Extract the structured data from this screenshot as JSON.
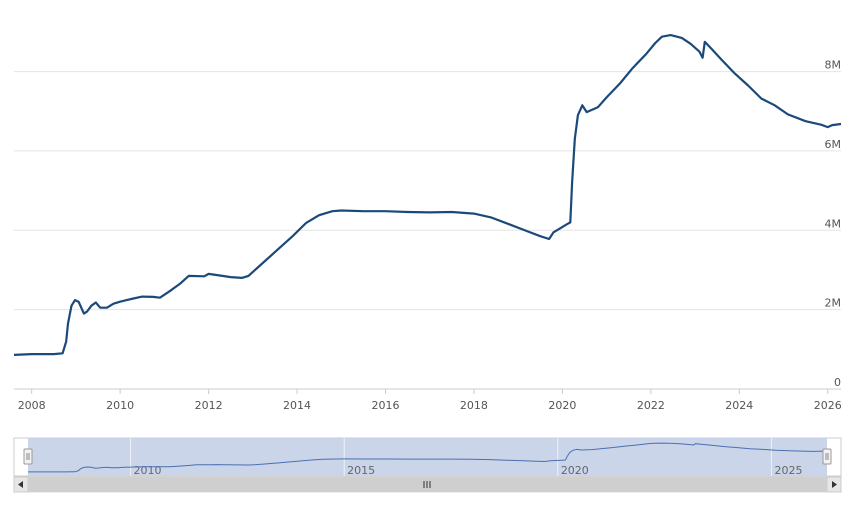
{
  "chart_data": {
    "type": "line",
    "title": "",
    "xlabel": "",
    "ylabel": "",
    "x_ticks": [
      "2008",
      "2010",
      "2012",
      "2014",
      "2016",
      "2018",
      "2020",
      "2022",
      "2024",
      "2026"
    ],
    "y_ticks": [
      "0",
      "2M",
      "4M",
      "6M",
      "8M"
    ],
    "ylim": [
      0,
      9300000
    ],
    "xlim": [
      2007.6,
      2026.3
    ],
    "grid": "horizontal",
    "legend": "none",
    "line_color": "#1b4a7a",
    "series": [
      {
        "points": [
          [
            2007.6,
            0.86
          ],
          [
            2008.0,
            0.88
          ],
          [
            2008.5,
            0.88
          ],
          [
            2008.7,
            0.9
          ],
          [
            2008.78,
            1.2
          ],
          [
            2008.82,
            1.65
          ],
          [
            2008.9,
            2.1
          ],
          [
            2008.98,
            2.24
          ],
          [
            2009.06,
            2.2
          ],
          [
            2009.18,
            1.9
          ],
          [
            2009.25,
            1.95
          ],
          [
            2009.35,
            2.1
          ],
          [
            2009.45,
            2.18
          ],
          [
            2009.55,
            2.05
          ],
          [
            2009.7,
            2.05
          ],
          [
            2009.85,
            2.15
          ],
          [
            2010.0,
            2.2
          ],
          [
            2010.3,
            2.28
          ],
          [
            2010.5,
            2.33
          ],
          [
            2010.75,
            2.32
          ],
          [
            2010.9,
            2.3
          ],
          [
            2011.1,
            2.45
          ],
          [
            2011.35,
            2.65
          ],
          [
            2011.55,
            2.85
          ],
          [
            2011.9,
            2.84
          ],
          [
            2012.0,
            2.9
          ],
          [
            2012.2,
            2.87
          ],
          [
            2012.5,
            2.82
          ],
          [
            2012.75,
            2.8
          ],
          [
            2012.9,
            2.85
          ],
          [
            2013.1,
            3.05
          ],
          [
            2013.5,
            3.45
          ],
          [
            2013.9,
            3.85
          ],
          [
            2014.2,
            4.18
          ],
          [
            2014.5,
            4.38
          ],
          [
            2014.8,
            4.48
          ],
          [
            2015.0,
            4.5
          ],
          [
            2015.5,
            4.48
          ],
          [
            2016.0,
            4.48
          ],
          [
            2016.5,
            4.46
          ],
          [
            2017.0,
            4.45
          ],
          [
            2017.5,
            4.46
          ],
          [
            2018.0,
            4.42
          ],
          [
            2018.4,
            4.32
          ],
          [
            2018.8,
            4.15
          ],
          [
            2019.2,
            3.98
          ],
          [
            2019.5,
            3.85
          ],
          [
            2019.7,
            3.78
          ],
          [
            2019.8,
            3.95
          ],
          [
            2019.95,
            4.05
          ],
          [
            2020.1,
            4.15
          ],
          [
            2020.18,
            4.2
          ],
          [
            2020.22,
            5.2
          ],
          [
            2020.28,
            6.3
          ],
          [
            2020.35,
            6.9
          ],
          [
            2020.45,
            7.15
          ],
          [
            2020.55,
            6.98
          ],
          [
            2020.8,
            7.1
          ],
          [
            2021.0,
            7.35
          ],
          [
            2021.3,
            7.7
          ],
          [
            2021.6,
            8.1
          ],
          [
            2021.9,
            8.45
          ],
          [
            2022.1,
            8.72
          ],
          [
            2022.25,
            8.88
          ],
          [
            2022.45,
            8.92
          ],
          [
            2022.7,
            8.85
          ],
          [
            2022.9,
            8.7
          ],
          [
            2023.1,
            8.5
          ],
          [
            2023.17,
            8.35
          ],
          [
            2023.22,
            8.75
          ],
          [
            2023.35,
            8.6
          ],
          [
            2023.6,
            8.3
          ],
          [
            2023.9,
            7.95
          ],
          [
            2024.2,
            7.65
          ],
          [
            2024.5,
            7.32
          ],
          [
            2024.8,
            7.15
          ],
          [
            2025.1,
            6.92
          ],
          [
            2025.5,
            6.75
          ],
          [
            2025.85,
            6.66
          ],
          [
            2026.0,
            6.6
          ],
          [
            2026.1,
            6.65
          ],
          [
            2026.3,
            6.68
          ]
        ],
        "point_units": "x = year, y = millions"
      }
    ]
  },
  "navigator": {
    "ticks": [
      "2010",
      "2015",
      "2020",
      "2025"
    ],
    "scroll_left_icon": "arrow-left-icon",
    "scroll_right_icon": "arrow-right-icon",
    "grip_icon": "grip-icon"
  }
}
